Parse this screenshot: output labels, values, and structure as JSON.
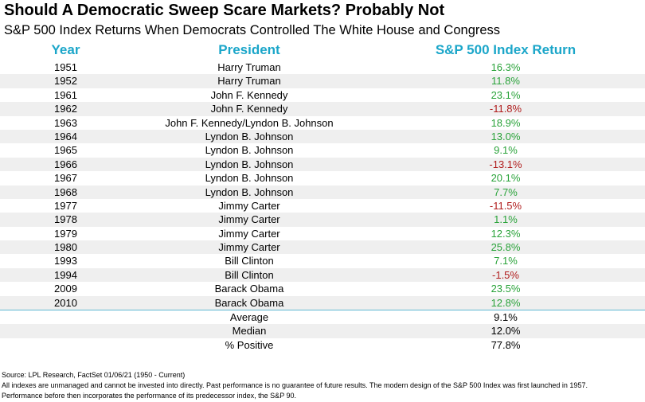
{
  "chart_data": {
    "type": "table",
    "title": "Should A Democratic Sweep Scare Markets? Probably Not",
    "subtitle": "S&P 500 Index Returns When Democrats Controlled The White House and Congress",
    "columns": [
      "Year",
      "President",
      "S&P 500 Index Return"
    ],
    "rows": [
      {
        "year": "1951",
        "president": "Harry Truman",
        "return": "16.3%",
        "value": 16.3
      },
      {
        "year": "1952",
        "president": "Harry Truman",
        "return": "11.8%",
        "value": 11.8
      },
      {
        "year": "1961",
        "president": "John F. Kennedy",
        "return": "23.1%",
        "value": 23.1
      },
      {
        "year": "1962",
        "president": "John F. Kennedy",
        "return": "-11.8%",
        "value": -11.8
      },
      {
        "year": "1963",
        "president": "John F. Kennedy/Lyndon B. Johnson",
        "return": "18.9%",
        "value": 18.9
      },
      {
        "year": "1964",
        "president": "Lyndon B. Johnson",
        "return": "13.0%",
        "value": 13.0
      },
      {
        "year": "1965",
        "president": "Lyndon B. Johnson",
        "return": "9.1%",
        "value": 9.1
      },
      {
        "year": "1966",
        "president": "Lyndon B. Johnson",
        "return": "-13.1%",
        "value": -13.1
      },
      {
        "year": "1967",
        "president": "Lyndon B. Johnson",
        "return": "20.1%",
        "value": 20.1
      },
      {
        "year": "1968",
        "president": "Lyndon B. Johnson",
        "return": "7.7%",
        "value": 7.7
      },
      {
        "year": "1977",
        "president": "Jimmy Carter",
        "return": "-11.5%",
        "value": -11.5
      },
      {
        "year": "1978",
        "president": "Jimmy Carter",
        "return": "1.1%",
        "value": 1.1
      },
      {
        "year": "1979",
        "president": "Jimmy Carter",
        "return": "12.3%",
        "value": 12.3
      },
      {
        "year": "1980",
        "president": "Jimmy Carter",
        "return": "25.8%",
        "value": 25.8
      },
      {
        "year": "1993",
        "president": "Bill Clinton",
        "return": "7.1%",
        "value": 7.1
      },
      {
        "year": "1994",
        "president": "Bill Clinton",
        "return": "-1.5%",
        "value": -1.5
      },
      {
        "year": "2009",
        "president": "Barack Obama",
        "return": "23.5%",
        "value": 23.5
      },
      {
        "year": "2010",
        "president": "Barack Obama",
        "return": "12.8%",
        "value": 12.8
      }
    ],
    "summary": [
      {
        "label": "Average",
        "return": "9.1%"
      },
      {
        "label": "Median",
        "return": "12.0%"
      },
      {
        "label": "% Positive",
        "return": "77.8%"
      }
    ],
    "colors": {
      "header": "#1ba6c9",
      "positive": "#2aa33a",
      "negative": "#b01c1c",
      "row_shade": "#efefef",
      "divider": "#5fb8d1"
    }
  },
  "footnotes": {
    "source": "Source: LPL Research, FactSet 01/06/21 (1950 - Current)",
    "disclaimer_1": "All indexes are unmanaged and cannot be invested into directly. Past performance is no guarantee of future results. The modern design of the S&P 500 Index was first launched in 1957.",
    "disclaimer_2": "Performance before then incorporates the performance of its  predecessor index, the S&P 90."
  }
}
